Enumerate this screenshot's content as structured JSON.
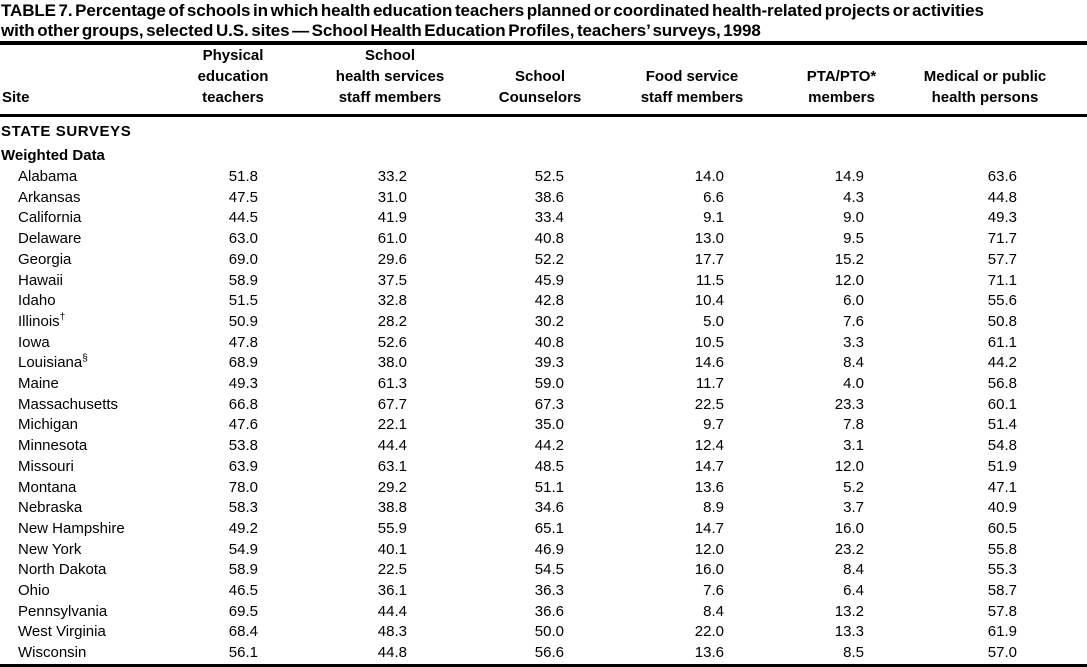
{
  "title": {
    "line1": "TABLE 7. Percentage of schools in which health education teachers planned or coordinated health-related projects or activities",
    "line2": "with other groups, selected U.S. sites — School Health Education Profiles, teachers’ surveys, 1998"
  },
  "table": {
    "site_column_header": "Site",
    "column_headers": [
      "Physical\neducation\nteachers",
      "School\nhealth services\nstaff members",
      "School\nCounselors",
      "Food service\nstaff members",
      "PTA/PTO*\nmembers",
      "Medical or public\nhealth persons"
    ],
    "section_label": "STATE SURVEYS",
    "subsection_label": "Weighted Data",
    "rows": [
      {
        "site": "Alabama",
        "marker": "",
        "values": [
          "51.8",
          "33.2",
          "52.5",
          "14.0",
          "14.9",
          "63.6"
        ]
      },
      {
        "site": "Arkansas",
        "marker": "",
        "values": [
          "47.5",
          "31.0",
          "38.6",
          "6.6",
          "4.3",
          "44.8"
        ]
      },
      {
        "site": "California",
        "marker": "",
        "values": [
          "44.5",
          "41.9",
          "33.4",
          "9.1",
          "9.0",
          "49.3"
        ]
      },
      {
        "site": "Delaware",
        "marker": "",
        "values": [
          "63.0",
          "61.0",
          "40.8",
          "13.0",
          "9.5",
          "71.7"
        ]
      },
      {
        "site": "Georgia",
        "marker": "",
        "values": [
          "69.0",
          "29.6",
          "52.2",
          "17.7",
          "15.2",
          "57.7"
        ]
      },
      {
        "site": "Hawaii",
        "marker": "",
        "values": [
          "58.9",
          "37.5",
          "45.9",
          "11.5",
          "12.0",
          "71.1"
        ]
      },
      {
        "site": "Idaho",
        "marker": "",
        "values": [
          "51.5",
          "32.8",
          "42.8",
          "10.4",
          "6.0",
          "55.6"
        ]
      },
      {
        "site": "Illinois",
        "marker": "†",
        "values": [
          "50.9",
          "28.2",
          "30.2",
          "5.0",
          "7.6",
          "50.8"
        ]
      },
      {
        "site": "Iowa",
        "marker": "",
        "values": [
          "47.8",
          "52.6",
          "40.8",
          "10.5",
          "3.3",
          "61.1"
        ]
      },
      {
        "site": "Louisiana",
        "marker": "§",
        "values": [
          "68.9",
          "38.0",
          "39.3",
          "14.6",
          "8.4",
          "44.2"
        ]
      },
      {
        "site": "Maine",
        "marker": "",
        "values": [
          "49.3",
          "61.3",
          "59.0",
          "11.7",
          "4.0",
          "56.8"
        ]
      },
      {
        "site": "Massachusetts",
        "marker": "",
        "values": [
          "66.8",
          "67.7",
          "67.3",
          "22.5",
          "23.3",
          "60.1"
        ]
      },
      {
        "site": "Michigan",
        "marker": "",
        "values": [
          "47.6",
          "22.1",
          "35.0",
          "9.7",
          "7.8",
          "51.4"
        ]
      },
      {
        "site": "Minnesota",
        "marker": "",
        "values": [
          "53.8",
          "44.4",
          "44.2",
          "12.4",
          "3.1",
          "54.8"
        ]
      },
      {
        "site": "Missouri",
        "marker": "",
        "values": [
          "63.9",
          "63.1",
          "48.5",
          "14.7",
          "12.0",
          "51.9"
        ]
      },
      {
        "site": "Montana",
        "marker": "",
        "values": [
          "78.0",
          "29.2",
          "51.1",
          "13.6",
          "5.2",
          "47.1"
        ]
      },
      {
        "site": "Nebraska",
        "marker": "",
        "values": [
          "58.3",
          "38.8",
          "34.6",
          "8.9",
          "3.7",
          "40.9"
        ]
      },
      {
        "site": "New Hampshire",
        "marker": "",
        "values": [
          "49.2",
          "55.9",
          "65.1",
          "14.7",
          "16.0",
          "60.5"
        ]
      },
      {
        "site": "New York",
        "marker": "",
        "values": [
          "54.9",
          "40.1",
          "46.9",
          "12.0",
          "23.2",
          "55.8"
        ]
      },
      {
        "site": "North Dakota",
        "marker": "",
        "values": [
          "58.9",
          "22.5",
          "54.5",
          "16.0",
          "8.4",
          "55.3"
        ]
      },
      {
        "site": "Ohio",
        "marker": "",
        "values": [
          "46.5",
          "36.1",
          "36.3",
          "7.6",
          "6.4",
          "58.7"
        ]
      },
      {
        "site": "Pennsylvania",
        "marker": "",
        "values": [
          "69.5",
          "44.4",
          "36.6",
          "8.4",
          "13.2",
          "57.8"
        ]
      },
      {
        "site": "West Virginia",
        "marker": "",
        "values": [
          "68.4",
          "48.3",
          "50.0",
          "22.0",
          "13.3",
          "61.9"
        ]
      },
      {
        "site": "Wisconsin",
        "marker": "",
        "values": [
          "56.1",
          "44.8",
          "56.6",
          "13.6",
          "8.5",
          "57.0"
        ]
      }
    ]
  }
}
